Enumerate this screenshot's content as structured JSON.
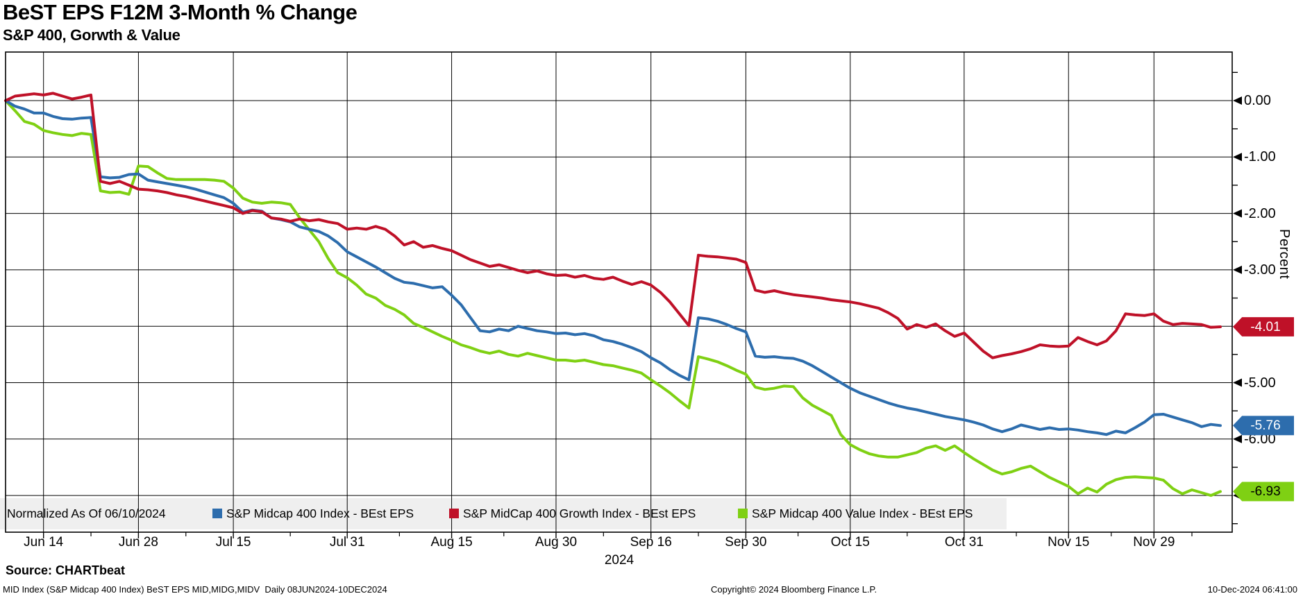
{
  "header": {
    "title": "BeST EPS F12M 3-Month % Change",
    "subtitle": "S&P 400, Gorwth & Value"
  },
  "source_line": "Source: CHARTbeat",
  "footer": {
    "left": "MID Index (S&P Midcap 400 Index) BeST EPS MID,MIDG,MIDV  Daily 08JUN2024-10DEC2024",
    "center": "Copyright© 2024 Bloomberg Finance L.P.",
    "right": "10-Dec-2024 06:41:00"
  },
  "chart_data": {
    "type": "line",
    "title": "BeST EPS F12M 3-Month % Change",
    "subtitle": "S&P 400, Gorwth & Value",
    "ylabel": "Percent",
    "x_axis_year": "2024",
    "x_range_label": "08JUN2024-10DEC2024",
    "x_total_points": 129,
    "ylim": [
      -7.65,
      0.86
    ],
    "grid": "both",
    "legend_position": "bottom",
    "normalized_label": "Normalized As Of 06/10/2024",
    "ytick_labels": [
      {
        "label": "0.00",
        "value": 0
      },
      {
        "label": "-1.00",
        "value": -1
      },
      {
        "label": "-2.00",
        "value": -2
      },
      {
        "label": "-3.00",
        "value": -3
      },
      {
        "label": "-5.00",
        "value": -5
      },
      {
        "label": "-6.00",
        "value": -6
      }
    ],
    "ygrid_values": [
      0,
      -1,
      -2,
      -3,
      -4,
      -5,
      -6,
      -7
    ],
    "yminor_values": [
      0.5,
      -0.5,
      -1.5,
      -2.5,
      -3.5,
      -4.5,
      -5.5,
      -6.5,
      -7.5
    ],
    "xticks": [
      {
        "label": "Jun 14",
        "day": 4
      },
      {
        "label": "Jun 28",
        "day": 14
      },
      {
        "label": "Jul 15",
        "day": 24
      },
      {
        "label": "Jul 31",
        "day": 36
      },
      {
        "label": "Aug 15",
        "day": 47
      },
      {
        "label": "Aug 30",
        "day": 58
      },
      {
        "label": "Sep 16",
        "day": 68
      },
      {
        "label": "Sep 30",
        "day": 78
      },
      {
        "label": "Oct 15",
        "day": 89
      },
      {
        "label": "Oct 31",
        "day": 101
      },
      {
        "label": "Nov 15",
        "day": 112
      },
      {
        "label": "Nov 29",
        "day": 121
      }
    ],
    "series": [
      {
        "name": "S&P Midcap 400 Index - BEst EPS",
        "color": "#2d6dad",
        "last_label": "-5.76",
        "values": [
          0.0,
          -0.1,
          -0.15,
          -0.22,
          -0.22,
          -0.28,
          -0.32,
          -0.33,
          -0.31,
          -0.3,
          -1.35,
          -1.37,
          -1.36,
          -1.31,
          -1.3,
          -1.41,
          -1.44,
          -1.47,
          -1.5,
          -1.53,
          -1.57,
          -1.62,
          -1.67,
          -1.72,
          -1.82,
          -1.98,
          -1.94,
          -1.96,
          -2.08,
          -2.11,
          -2.15,
          -2.24,
          -2.28,
          -2.32,
          -2.4,
          -2.52,
          -2.68,
          -2.77,
          -2.86,
          -2.95,
          -3.05,
          -3.15,
          -3.22,
          -3.24,
          -3.28,
          -3.32,
          -3.3,
          -3.45,
          -3.62,
          -3.85,
          -4.08,
          -4.1,
          -4.05,
          -4.08,
          -4.0,
          -4.04,
          -4.08,
          -4.1,
          -4.13,
          -4.12,
          -4.15,
          -4.13,
          -4.17,
          -4.24,
          -4.27,
          -4.32,
          -4.38,
          -4.45,
          -4.56,
          -4.65,
          -4.77,
          -4.87,
          -4.95,
          -3.85,
          -3.87,
          -3.91,
          -3.97,
          -4.04,
          -4.1,
          -4.53,
          -4.55,
          -4.54,
          -4.56,
          -4.57,
          -4.62,
          -4.7,
          -4.8,
          -4.9,
          -5.0,
          -5.1,
          -5.18,
          -5.24,
          -5.3,
          -5.36,
          -5.41,
          -5.45,
          -5.48,
          -5.52,
          -5.56,
          -5.6,
          -5.63,
          -5.66,
          -5.7,
          -5.75,
          -5.82,
          -5.87,
          -5.82,
          -5.75,
          -5.79,
          -5.83,
          -5.8,
          -5.83,
          -5.82,
          -5.84,
          -5.87,
          -5.89,
          -5.92,
          -5.86,
          -5.89,
          -5.8,
          -5.7,
          -5.57,
          -5.56,
          -5.61,
          -5.66,
          -5.71,
          -5.78,
          -5.74,
          -5.76
        ]
      },
      {
        "name": "S&P MidCap 400 Growth Index - BEst EPS",
        "color": "#bf1128",
        "last_label": "-4.01",
        "values": [
          0.0,
          0.08,
          0.1,
          0.12,
          0.1,
          0.13,
          0.08,
          0.03,
          0.06,
          0.1,
          -1.43,
          -1.47,
          -1.43,
          -1.5,
          -1.57,
          -1.58,
          -1.6,
          -1.63,
          -1.67,
          -1.7,
          -1.74,
          -1.78,
          -1.82,
          -1.86,
          -1.9,
          -2.0,
          -1.95,
          -1.97,
          -2.08,
          -2.1,
          -2.14,
          -2.1,
          -2.13,
          -2.11,
          -2.15,
          -2.18,
          -2.28,
          -2.26,
          -2.28,
          -2.23,
          -2.28,
          -2.4,
          -2.56,
          -2.5,
          -2.6,
          -2.57,
          -2.62,
          -2.66,
          -2.74,
          -2.82,
          -2.88,
          -2.94,
          -2.91,
          -2.96,
          -3.01,
          -3.05,
          -3.02,
          -3.07,
          -3.1,
          -3.09,
          -3.13,
          -3.1,
          -3.15,
          -3.17,
          -3.13,
          -3.2,
          -3.26,
          -3.21,
          -3.27,
          -3.4,
          -3.57,
          -3.78,
          -3.99,
          -2.74,
          -2.76,
          -2.77,
          -2.79,
          -2.81,
          -2.87,
          -3.36,
          -3.4,
          -3.37,
          -3.41,
          -3.44,
          -3.46,
          -3.48,
          -3.5,
          -3.53,
          -3.55,
          -3.57,
          -3.6,
          -3.64,
          -3.68,
          -3.76,
          -3.86,
          -4.05,
          -3.97,
          -4.02,
          -3.96,
          -4.08,
          -4.18,
          -4.12,
          -4.28,
          -4.44,
          -4.56,
          -4.52,
          -4.49,
          -4.45,
          -4.4,
          -4.33,
          -4.35,
          -4.36,
          -4.35,
          -4.2,
          -4.27,
          -4.33,
          -4.26,
          -4.08,
          -3.78,
          -3.8,
          -3.81,
          -3.78,
          -3.91,
          -3.97,
          -3.95,
          -3.96,
          -3.97,
          -4.02,
          -4.01
        ]
      },
      {
        "name": "S&P Midcap 400 Value Index - BEst EPS",
        "color": "#7fd013",
        "last_label": "-6.93",
        "values": [
          0.0,
          -0.18,
          -0.37,
          -0.42,
          -0.53,
          -0.57,
          -0.6,
          -0.62,
          -0.58,
          -0.6,
          -1.6,
          -1.63,
          -1.62,
          -1.66,
          -1.16,
          -1.17,
          -1.28,
          -1.38,
          -1.4,
          -1.4,
          -1.4,
          -1.4,
          -1.41,
          -1.43,
          -1.55,
          -1.73,
          -1.8,
          -1.82,
          -1.8,
          -1.81,
          -1.84,
          -2.08,
          -2.29,
          -2.5,
          -2.8,
          -3.05,
          -3.14,
          -3.27,
          -3.43,
          -3.5,
          -3.63,
          -3.7,
          -3.8,
          -3.95,
          -4.02,
          -4.1,
          -4.18,
          -4.25,
          -4.33,
          -4.38,
          -4.44,
          -4.48,
          -4.44,
          -4.5,
          -4.53,
          -4.48,
          -4.52,
          -4.56,
          -4.6,
          -4.6,
          -4.62,
          -4.6,
          -4.64,
          -4.68,
          -4.7,
          -4.74,
          -4.78,
          -4.83,
          -4.95,
          -5.06,
          -5.18,
          -5.32,
          -5.45,
          -4.54,
          -4.58,
          -4.63,
          -4.7,
          -4.78,
          -4.85,
          -5.08,
          -5.12,
          -5.1,
          -5.06,
          -5.07,
          -5.27,
          -5.4,
          -5.49,
          -5.58,
          -5.92,
          -6.1,
          -6.19,
          -6.26,
          -6.3,
          -6.32,
          -6.32,
          -6.28,
          -6.24,
          -6.16,
          -6.12,
          -6.2,
          -6.12,
          -6.24,
          -6.35,
          -6.45,
          -6.55,
          -6.62,
          -6.58,
          -6.52,
          -6.48,
          -6.58,
          -6.68,
          -6.76,
          -6.84,
          -6.97,
          -6.87,
          -6.94,
          -6.8,
          -6.72,
          -6.68,
          -6.67,
          -6.68,
          -6.69,
          -6.73,
          -6.88,
          -6.97,
          -6.9,
          -6.95,
          -7.0,
          -6.93
        ]
      }
    ],
    "colors": {
      "index": "#2d6dad",
      "growth": "#bf1128",
      "value": "#7fd013",
      "legend_bg": "#efefef"
    }
  }
}
